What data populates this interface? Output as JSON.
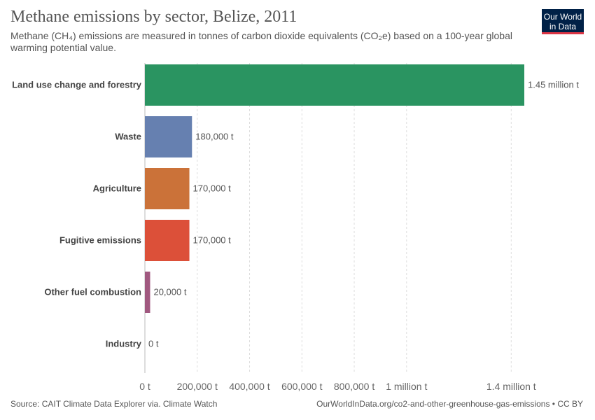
{
  "header": {
    "title": "Methane emissions by sector, Belize, 2011",
    "subtitle": "Methane (CH₄) emissions are measured in tonnes of carbon dioxide equivalents (CO₂e) based on a 100-year global warming potential value.",
    "logo_line1": "Our World",
    "logo_line2": "in Data"
  },
  "footer": {
    "source": "Source: CAIT Climate Data Explorer via. Climate Watch",
    "url": "OurWorldInData.org/co2-and-other-greenhouse-gas-emissions • CC BY"
  },
  "chart_data": {
    "type": "bar",
    "orientation": "horizontal",
    "categories": [
      "Land use change and forestry",
      "Waste",
      "Agriculture",
      "Fugitive emissions",
      "Other fuel combustion",
      "Industry"
    ],
    "values": [
      1450000,
      180000,
      170000,
      170000,
      20000,
      0
    ],
    "value_labels": [
      "1.45 million t",
      "180,000 t",
      "170,000 t",
      "170,000 t",
      "20,000 t",
      "0 t"
    ],
    "colors": [
      "#2a9461",
      "#6680b0",
      "#cb7239",
      "#dc5039",
      "#a0587f",
      "#888888"
    ],
    "x_ticks": [
      0,
      200000,
      400000,
      600000,
      800000,
      1000000,
      1400000
    ],
    "x_tick_labels": [
      "0 t",
      "200,000 t",
      "400,000 t",
      "600,000 t",
      "800,000 t",
      "1 million t",
      "1.4 million t"
    ],
    "xlim": [
      0,
      1450000
    ],
    "grid": true
  }
}
